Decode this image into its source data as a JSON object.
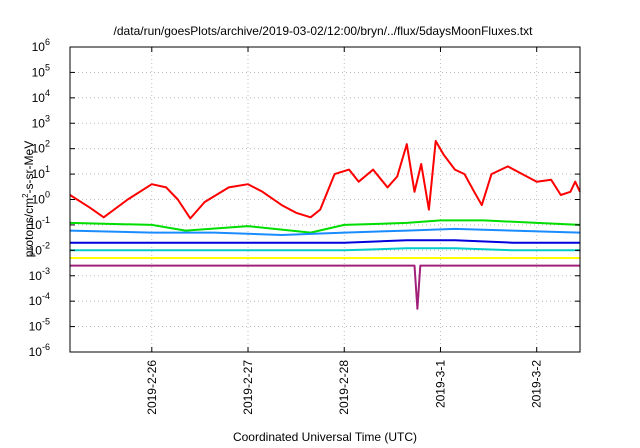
{
  "chart_data": {
    "type": "line",
    "title": "/data/run/goesPlots/archive/2019-03-02/12:00/bryn/../flux/5daysMoonFluxes.txt",
    "xlabel": "Coordinated Universal Time (UTC)",
    "ylabel": {
      "base": "protons/cm",
      "sup": "2",
      "rest": "-s-sr-MeV"
    },
    "yscale": "log",
    "ylim": [
      1e-06,
      1000000.0
    ],
    "xlim": [
      0,
      5.3
    ],
    "grid": true,
    "legend": "none",
    "x_ticks": [
      {
        "x": 0.85,
        "label": "2019-2-26"
      },
      {
        "x": 1.85,
        "label": "2019-2-27"
      },
      {
        "x": 2.85,
        "label": "2019-2-28"
      },
      {
        "x": 3.85,
        "label": "2019-3-1"
      },
      {
        "x": 4.85,
        "label": "2019-3-2"
      }
    ],
    "y_ticks": [
      {
        "exp": -6,
        "label": "-6"
      },
      {
        "exp": -5,
        "label": "-5"
      },
      {
        "exp": -4,
        "label": "-4"
      },
      {
        "exp": -3,
        "label": "-3"
      },
      {
        "exp": -2,
        "label": "-2"
      },
      {
        "exp": -1,
        "label": "-1"
      },
      {
        "exp": 0,
        "label": "0"
      },
      {
        "exp": 1,
        "label": "1"
      },
      {
        "exp": 2,
        "label": "2"
      },
      {
        "exp": 3,
        "label": "3"
      },
      {
        "exp": 4,
        "label": "4"
      },
      {
        "exp": 5,
        "label": "5"
      },
      {
        "exp": 6,
        "label": "6"
      }
    ],
    "tick_base": "10",
    "series": [
      {
        "color": "#ff0000",
        "points": [
          [
            0,
            1.5
          ],
          [
            0.2,
            0.5
          ],
          [
            0.35,
            0.2
          ],
          [
            0.6,
            1.0
          ],
          [
            0.85,
            4
          ],
          [
            1.0,
            3
          ],
          [
            1.12,
            1.0
          ],
          [
            1.25,
            0.18
          ],
          [
            1.4,
            0.8
          ],
          [
            1.65,
            3
          ],
          [
            1.85,
            4
          ],
          [
            2.0,
            2
          ],
          [
            2.2,
            0.6
          ],
          [
            2.35,
            0.3
          ],
          [
            2.5,
            0.2
          ],
          [
            2.6,
            0.4
          ],
          [
            2.75,
            10
          ],
          [
            2.9,
            15
          ],
          [
            3.0,
            5
          ],
          [
            3.15,
            15
          ],
          [
            3.3,
            3
          ],
          [
            3.4,
            8
          ],
          [
            3.5,
            150
          ],
          [
            3.58,
            2
          ],
          [
            3.65,
            25
          ],
          [
            3.73,
            0.4
          ],
          [
            3.8,
            200
          ],
          [
            3.88,
            60
          ],
          [
            4.0,
            15
          ],
          [
            4.1,
            10
          ],
          [
            4.2,
            2
          ],
          [
            4.28,
            0.6
          ],
          [
            4.38,
            10
          ],
          [
            4.55,
            20
          ],
          [
            4.7,
            10
          ],
          [
            4.85,
            5
          ],
          [
            5.0,
            6
          ],
          [
            5.1,
            1.5
          ],
          [
            5.2,
            2
          ],
          [
            5.25,
            5
          ],
          [
            5.3,
            2
          ]
        ]
      },
      {
        "color": "#00dd00",
        "points": [
          [
            0,
            0.12
          ],
          [
            0.85,
            0.1
          ],
          [
            1.2,
            0.06
          ],
          [
            1.85,
            0.09
          ],
          [
            2.5,
            0.05
          ],
          [
            2.85,
            0.1
          ],
          [
            3.5,
            0.12
          ],
          [
            3.85,
            0.15
          ],
          [
            4.3,
            0.15
          ],
          [
            4.85,
            0.12
          ],
          [
            5.3,
            0.1
          ]
        ]
      },
      {
        "color": "#1a8cff",
        "points": [
          [
            0,
            0.06
          ],
          [
            0.85,
            0.05
          ],
          [
            1.5,
            0.05
          ],
          [
            2.2,
            0.04
          ],
          [
            2.85,
            0.05
          ],
          [
            3.5,
            0.06
          ],
          [
            4.0,
            0.07
          ],
          [
            4.6,
            0.06
          ],
          [
            5.3,
            0.05
          ]
        ]
      },
      {
        "color": "#0000dd",
        "points": [
          [
            0,
            0.02
          ],
          [
            0.85,
            0.02
          ],
          [
            1.5,
            0.02
          ],
          [
            2.2,
            0.02
          ],
          [
            2.85,
            0.02
          ],
          [
            3.5,
            0.025
          ],
          [
            4.0,
            0.025
          ],
          [
            4.6,
            0.02
          ],
          [
            5.3,
            0.02
          ]
        ]
      },
      {
        "color": "#00cccc",
        "points": [
          [
            0,
            0.01
          ],
          [
            0.85,
            0.01
          ],
          [
            1.5,
            0.01
          ],
          [
            2.2,
            0.01
          ],
          [
            2.85,
            0.01
          ],
          [
            3.5,
            0.012
          ],
          [
            4.0,
            0.012
          ],
          [
            4.6,
            0.01
          ],
          [
            5.3,
            0.01
          ]
        ]
      },
      {
        "color": "#ffff00",
        "points": [
          [
            0,
            0.005
          ],
          [
            5.3,
            0.005
          ]
        ]
      },
      {
        "color": "#a0207a",
        "points": [
          [
            0,
            0.0025
          ],
          [
            0.85,
            0.0025
          ],
          [
            1.85,
            0.0025
          ],
          [
            2.85,
            0.0025
          ],
          [
            3.35,
            0.0025
          ],
          [
            3.58,
            0.0025
          ],
          [
            3.61,
            5e-05
          ],
          [
            3.64,
            0.0025
          ],
          [
            4.85,
            0.0025
          ],
          [
            5.3,
            0.0025
          ]
        ]
      }
    ]
  }
}
